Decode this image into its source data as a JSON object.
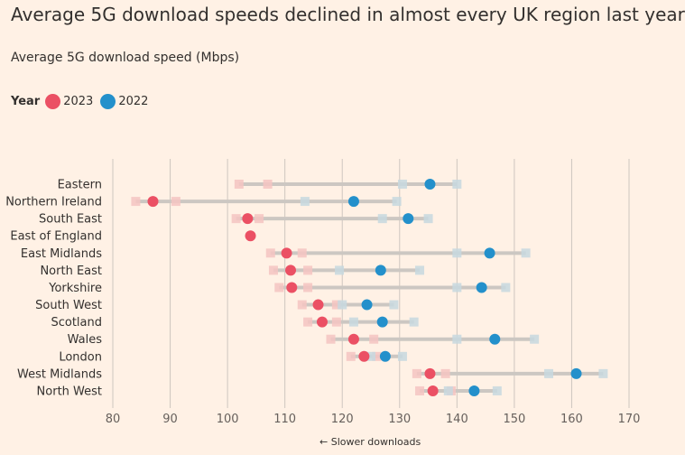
{
  "title": "Average 5G download speeds declined in almost every UK region last year",
  "subtitle": "Average 5G download speed (Mbps)",
  "legend": {
    "title": "Year",
    "items": [
      {
        "label": "2023",
        "color": "#eb5064"
      },
      {
        "label": "2022",
        "color": "#2390cb"
      }
    ]
  },
  "footnote": "← Slower downloads",
  "colors": {
    "y2023": "#eb5064",
    "y2022": "#2390cb",
    "range_bar": "#ccc7c2",
    "band2023": "#f4c4c2",
    "band2022": "#c7d8df",
    "grid": "#cec6bf"
  },
  "chart_data": {
    "type": "scatter",
    "title": "Average 5G download speeds declined in almost every UK region last year",
    "ylabel": "",
    "xlabel": "",
    "xlim": [
      80,
      170
    ],
    "xticks": [
      80,
      90,
      100,
      110,
      120,
      130,
      140,
      150,
      160,
      170
    ],
    "grid": true,
    "legend_position": "top-left",
    "categories": [
      "Eastern",
      "Northern Ireland",
      "South East",
      "East of England",
      "East Midlands",
      "North East",
      "Yorkshire",
      "South West",
      "Scotland",
      "Wales",
      "London",
      "West Midlands",
      "North West"
    ],
    "series": [
      {
        "name": "2023",
        "values": [
          null,
          87,
          103.5,
          104,
          110.3,
          111,
          111.2,
          115.8,
          116.5,
          122,
          123.8,
          135.3,
          135.8
        ]
      },
      {
        "name": "2022",
        "values": [
          135.3,
          122,
          131.5,
          null,
          145.7,
          126.7,
          144.3,
          124.3,
          127,
          146.6,
          127.5,
          160.8,
          143
        ]
      }
    ],
    "ranges_2023": [
      [
        102,
        107
      ],
      [
        84,
        91
      ],
      [
        101.5,
        105.5
      ],
      [
        null,
        null
      ],
      [
        107.5,
        113
      ],
      [
        108,
        114
      ],
      [
        109,
        114
      ],
      [
        113,
        119
      ],
      [
        114,
        119
      ],
      [
        118,
        125.5
      ],
      [
        121.5,
        126
      ],
      [
        133,
        138
      ],
      [
        133.5,
        139
      ]
    ],
    "ranges_2022": [
      [
        130.5,
        140
      ],
      [
        113.5,
        129.5
      ],
      [
        127,
        135
      ],
      [
        null,
        null
      ],
      [
        140,
        152
      ],
      [
        119.5,
        133.5
      ],
      [
        140,
        148.5
      ],
      [
        120,
        129
      ],
      [
        122,
        132.5
      ],
      [
        140,
        153.5
      ],
      [
        125,
        130.5
      ],
      [
        156,
        165.5
      ],
      [
        138.5,
        147
      ]
    ]
  }
}
